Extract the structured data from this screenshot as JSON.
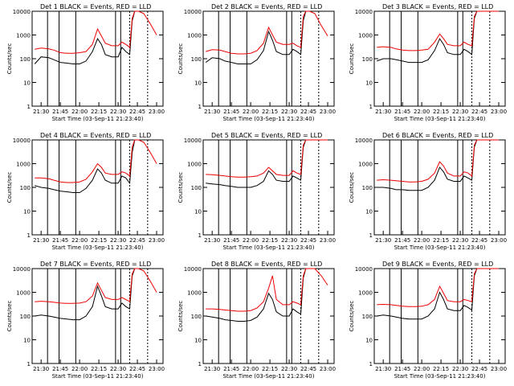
{
  "figure": {
    "start_label": "Start Time (03-Sep-11 21:23:40)",
    "ylabel": "Counts/sec",
    "y_ticks": [
      "1",
      "10",
      "100",
      "1000",
      "10000"
    ],
    "x_ticks": [
      "21:30",
      "21:45",
      "22:00",
      "22:15",
      "22:30",
      "22:45",
      "23:00"
    ],
    "legend_text": "BLACK = Events, RED = LLD",
    "colors": {
      "events": "#000000",
      "lld": "#ee0000",
      "axis": "#000000"
    }
  },
  "chart_data": [
    {
      "type": "line",
      "title": "Det 1",
      "title_suffix": "BLACK = Events, RED = LLD",
      "xlabel": "Start Time (03-Sep-11 21:23:40)",
      "ylabel": "Counts/sec",
      "yscale": "log",
      "xlim": [
        "21:23",
        "23:05"
      ],
      "ylim": [
        1,
        10000
      ],
      "x": [
        "21:25",
        "21:30",
        "21:36",
        "21:40",
        "21:45",
        "21:50",
        "21:55",
        "22:00",
        "22:05",
        "22:10",
        "22:14",
        "22:17",
        "22:20",
        "22:25",
        "22:30",
        "22:33",
        "22:36",
        "22:39",
        "22:41",
        "22:43",
        "22:46",
        "22:50",
        "22:55",
        "23:00"
      ],
      "series": [
        {
          "name": "Events",
          "values": [
            60,
            120,
            110,
            90,
            70,
            65,
            60,
            60,
            80,
            200,
            700,
            400,
            150,
            120,
            120,
            300,
            200,
            150,
            4000,
            10000,
            10000,
            10000,
            10000,
            10000
          ]
        },
        {
          "name": "LLD",
          "values": [
            250,
            280,
            260,
            230,
            180,
            170,
            170,
            180,
            200,
            400,
            1800,
            900,
            450,
            350,
            350,
            500,
            400,
            300,
            5000,
            10000,
            10000,
            8000,
            3000,
            1000
          ]
        }
      ],
      "vlines": [
        "21:35",
        "21:44",
        "21:57",
        "22:28",
        "22:32",
        "22:39",
        "22:53"
      ]
    },
    {
      "type": "line",
      "title": "Det 2",
      "title_suffix": "BLACK = Events, RED = LLD",
      "xlabel": "Start Time (03-Sep-11 21:23:40)",
      "ylabel": "Counts/sec",
      "yscale": "log",
      "xlim": [
        "21:23",
        "23:05"
      ],
      "ylim": [
        1,
        10000
      ],
      "x": [
        "21:25",
        "21:30",
        "21:36",
        "21:40",
        "21:45",
        "21:50",
        "21:55",
        "22:00",
        "22:05",
        "22:10",
        "22:14",
        "22:17",
        "22:20",
        "22:25",
        "22:30",
        "22:33",
        "22:36",
        "22:39",
        "22:41",
        "22:43",
        "22:46",
        "22:50",
        "22:55",
        "23:00"
      ],
      "series": [
        {
          "name": "Events",
          "values": [
            70,
            110,
            100,
            80,
            70,
            60,
            60,
            60,
            90,
            220,
            1400,
            600,
            200,
            150,
            150,
            250,
            200,
            150,
            4000,
            10000,
            10000,
            10000,
            10000,
            10000
          ]
        },
        {
          "name": "LLD",
          "values": [
            200,
            240,
            230,
            200,
            170,
            160,
            160,
            170,
            220,
            450,
            2100,
            1000,
            500,
            400,
            400,
            450,
            350,
            300,
            6000,
            10000,
            10000,
            8000,
            2500,
            900
          ]
        }
      ],
      "vlines": [
        "21:35",
        "21:44",
        "21:57",
        "22:28",
        "22:32",
        "22:39",
        "22:53"
      ]
    },
    {
      "type": "line",
      "title": "Det 3",
      "title_suffix": "BLACK = Events, RED = LLD",
      "xlabel": "Start Time (03-Sep-11 21:23:40)",
      "ylabel": "Counts/sec",
      "yscale": "log",
      "xlim": [
        "21:23",
        "23:05"
      ],
      "ylim": [
        1,
        10000
      ],
      "x": [
        "21:25",
        "21:30",
        "21:36",
        "21:40",
        "21:45",
        "21:50",
        "21:55",
        "22:00",
        "22:05",
        "22:10",
        "22:14",
        "22:17",
        "22:20",
        "22:25",
        "22:30",
        "22:33",
        "22:36",
        "22:39",
        "22:41",
        "22:43",
        "22:46",
        "22:50",
        "22:55",
        "23:00"
      ],
      "series": [
        {
          "name": "Events",
          "values": [
            80,
            100,
            100,
            90,
            80,
            70,
            70,
            70,
            90,
            220,
            700,
            400,
            180,
            150,
            150,
            250,
            200,
            150,
            5000,
            10000,
            10000,
            10000,
            10000,
            10000
          ]
        },
        {
          "name": "LLD",
          "values": [
            300,
            320,
            300,
            260,
            230,
            220,
            220,
            230,
            250,
            500,
            1100,
            700,
            400,
            350,
            350,
            500,
            400,
            350,
            6000,
            10000,
            10000,
            10000,
            10000,
            10000
          ]
        }
      ],
      "vlines": [
        "21:35",
        "21:44",
        "21:57",
        "22:28",
        "22:32",
        "22:39",
        "22:53"
      ]
    },
    {
      "type": "line",
      "title": "Det 4",
      "title_suffix": "BLACK = Events, RED = LLD",
      "xlabel": "Start Time (03-Sep-11 21:23:40)",
      "ylabel": "Counts/sec",
      "yscale": "log",
      "xlim": [
        "21:23",
        "23:05"
      ],
      "ylim": [
        1,
        10000
      ],
      "x": [
        "21:25",
        "21:30",
        "21:36",
        "21:40",
        "21:45",
        "21:50",
        "21:55",
        "22:00",
        "22:05",
        "22:10",
        "22:14",
        "22:17",
        "22:20",
        "22:25",
        "22:30",
        "22:33",
        "22:36",
        "22:39",
        "22:41",
        "22:43",
        "22:46",
        "22:50",
        "22:55",
        "23:00"
      ],
      "series": [
        {
          "name": "Events",
          "values": [
            120,
            100,
            90,
            80,
            70,
            65,
            60,
            60,
            90,
            200,
            600,
            400,
            200,
            150,
            150,
            300,
            250,
            150,
            3000,
            10000,
            10000,
            10000,
            10000,
            10000
          ]
        },
        {
          "name": "LLD",
          "values": [
            250,
            250,
            230,
            200,
            170,
            160,
            160,
            170,
            220,
            450,
            1000,
            700,
            400,
            350,
            350,
            450,
            400,
            300,
            5000,
            10000,
            10000,
            8000,
            3000,
            1000
          ]
        }
      ],
      "vlines": [
        "21:35",
        "21:44",
        "21:57",
        "22:28",
        "22:32",
        "22:39",
        "22:53"
      ]
    },
    {
      "type": "line",
      "title": "Det 5",
      "title_suffix": "BLACK = Events, RED = LLD",
      "xlabel": "Start Time (03-Sep-11 21:23:40)",
      "ylabel": "Counts/sec",
      "yscale": "log",
      "xlim": [
        "21:23",
        "23:05"
      ],
      "ylim": [
        1,
        10000
      ],
      "x": [
        "21:25",
        "21:30",
        "21:36",
        "21:40",
        "21:45",
        "21:50",
        "21:55",
        "22:00",
        "22:05",
        "22:10",
        "22:14",
        "22:17",
        "22:20",
        "22:25",
        "22:30",
        "22:33",
        "22:36",
        "22:39",
        "22:41",
        "22:43",
        "22:46",
        "22:50",
        "22:55",
        "23:00"
      ],
      "series": [
        {
          "name": "Events",
          "values": [
            150,
            140,
            130,
            120,
            110,
            100,
            100,
            100,
            120,
            180,
            500,
            350,
            200,
            180,
            180,
            300,
            250,
            200,
            5000,
            10000,
            10000,
            10000,
            10000,
            10000
          ]
        },
        {
          "name": "LLD",
          "values": [
            350,
            340,
            320,
            300,
            280,
            270,
            270,
            280,
            300,
            400,
            700,
            500,
            350,
            320,
            320,
            500,
            400,
            350,
            6000,
            10000,
            10000,
            10000,
            10000,
            10000
          ]
        }
      ],
      "vlines": [
        "21:35",
        "21:44",
        "21:57",
        "22:28",
        "22:32",
        "22:39",
        "22:53"
      ]
    },
    {
      "type": "line",
      "title": "Det 6",
      "title_suffix": "BLACK = Events, RED = LLD",
      "xlabel": "Start Time (03-Sep-11 21:23:40)",
      "ylabel": "Counts/sec",
      "yscale": "log",
      "xlim": [
        "21:23",
        "23:05"
      ],
      "ylim": [
        1,
        10000
      ],
      "x": [
        "21:25",
        "21:30",
        "21:36",
        "21:40",
        "21:45",
        "21:50",
        "21:55",
        "22:00",
        "22:05",
        "22:10",
        "22:14",
        "22:17",
        "22:20",
        "22:25",
        "22:30",
        "22:33",
        "22:36",
        "22:39",
        "22:41",
        "22:43",
        "22:46",
        "22:50",
        "22:55",
        "23:00"
      ],
      "series": [
        {
          "name": "Events",
          "values": [
            100,
            100,
            90,
            80,
            80,
            75,
            75,
            75,
            100,
            200,
            700,
            450,
            220,
            180,
            180,
            300,
            250,
            200,
            5000,
            10000,
            10000,
            10000,
            10000,
            10000
          ]
        },
        {
          "name": "LLD",
          "values": [
            200,
            210,
            200,
            190,
            180,
            170,
            170,
            180,
            220,
            400,
            1200,
            800,
            400,
            300,
            300,
            450,
            400,
            300,
            6000,
            10000,
            10000,
            10000,
            10000,
            10000
          ]
        }
      ],
      "vlines": [
        "21:35",
        "21:44",
        "21:57",
        "22:28",
        "22:32",
        "22:39",
        "22:53"
      ]
    },
    {
      "type": "line",
      "title": "Det 7",
      "title_suffix": "BLACK = Events, RED = LLD",
      "xlabel": "Start Time (03-Sep-11 21:23:40)",
      "ylabel": "Counts/sec",
      "yscale": "log",
      "xlim": [
        "21:23",
        "23:05"
      ],
      "ylim": [
        1,
        10000
      ],
      "x": [
        "21:25",
        "21:30",
        "21:36",
        "21:40",
        "21:45",
        "21:50",
        "21:55",
        "22:00",
        "22:05",
        "22:10",
        "22:14",
        "22:17",
        "22:20",
        "22:25",
        "22:30",
        "22:33",
        "22:36",
        "22:39",
        "22:41",
        "22:43",
        "22:46",
        "22:50",
        "22:55",
        "23:00"
      ],
      "series": [
        {
          "name": "Events",
          "values": [
            100,
            110,
            100,
            90,
            80,
            75,
            70,
            70,
            100,
            250,
            1800,
            700,
            250,
            200,
            200,
            350,
            250,
            200,
            5000,
            10000,
            10000,
            10000,
            10000,
            10000
          ]
        },
        {
          "name": "LLD",
          "values": [
            400,
            420,
            400,
            380,
            350,
            340,
            340,
            350,
            400,
            700,
            2500,
            1200,
            600,
            500,
            500,
            600,
            500,
            400,
            6000,
            10000,
            10000,
            8000,
            3000,
            1000
          ]
        }
      ],
      "vlines": [
        "21:35",
        "21:44",
        "21:57",
        "22:28",
        "22:32",
        "22:39",
        "22:53"
      ]
    },
    {
      "type": "line",
      "title": "Det 8",
      "title_suffix": "BLACK = Events, RED = LLD",
      "xlabel": "Start Time (03-Sep-11 21:23:40)",
      "ylabel": "Counts/sec",
      "yscale": "log",
      "xlim": [
        "21:23",
        "23:05"
      ],
      "ylim": [
        1,
        10000
      ],
      "x": [
        "21:25",
        "21:30",
        "21:36",
        "21:40",
        "21:45",
        "21:50",
        "21:55",
        "22:00",
        "22:05",
        "22:10",
        "22:14",
        "22:17",
        "22:20",
        "22:25",
        "22:30",
        "22:33",
        "22:36",
        "22:39",
        "22:41",
        "22:43",
        "22:46",
        "22:50",
        "22:55",
        "23:00"
      ],
      "series": [
        {
          "name": "Events",
          "values": [
            100,
            90,
            80,
            70,
            65,
            60,
            60,
            65,
            90,
            200,
            900,
            500,
            150,
            100,
            100,
            200,
            150,
            120,
            4000,
            10000,
            10000,
            10000,
            10000,
            10000
          ]
        },
        {
          "name": "LLD",
          "values": [
            200,
            200,
            190,
            180,
            170,
            160,
            160,
            170,
            220,
            400,
            1500,
            5000,
            500,
            300,
            300,
            400,
            350,
            300,
            5000,
            10000,
            10000,
            10000,
            5000,
            2000
          ]
        }
      ],
      "vlines": [
        "21:35",
        "21:44",
        "21:57",
        "22:28",
        "22:32",
        "22:39",
        "22:53"
      ]
    },
    {
      "type": "line",
      "title": "Det 9",
      "title_suffix": "BLACK = Events, RED = LLD",
      "xlabel": "Start Time (03-Sep-11 21:23:40)",
      "ylabel": "Counts/sec",
      "yscale": "log",
      "xlim": [
        "21:23",
        "23:05"
      ],
      "ylim": [
        1,
        10000
      ],
      "x": [
        "21:25",
        "21:30",
        "21:36",
        "21:40",
        "21:45",
        "21:50",
        "21:55",
        "22:00",
        "22:05",
        "22:10",
        "22:14",
        "22:17",
        "22:20",
        "22:25",
        "22:30",
        "22:33",
        "22:36",
        "22:39",
        "22:41",
        "22:43",
        "22:46",
        "22:50",
        "22:55",
        "23:00"
      ],
      "series": [
        {
          "name": "Events",
          "values": [
            100,
            110,
            100,
            90,
            80,
            75,
            75,
            75,
            100,
            200,
            1000,
            500,
            200,
            170,
            170,
            280,
            230,
            180,
            5000,
            10000,
            10000,
            10000,
            10000,
            10000
          ]
        },
        {
          "name": "LLD",
          "values": [
            300,
            310,
            300,
            280,
            260,
            250,
            250,
            260,
            300,
            500,
            1800,
            900,
            450,
            400,
            400,
            500,
            450,
            400,
            6000,
            10000,
            10000,
            10000,
            10000,
            10000
          ]
        }
      ],
      "vlines": [
        "21:35",
        "21:44",
        "21:57",
        "22:28",
        "22:32",
        "22:39",
        "22:53"
      ]
    }
  ]
}
